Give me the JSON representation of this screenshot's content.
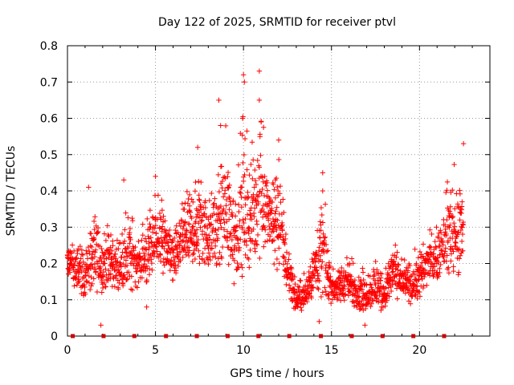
{
  "chart_data": {
    "type": "scatter",
    "title": "Day 122 of 2025, SRMTID for receiver ptvl",
    "xlabel": "GPS time / hours",
    "ylabel": "SRMTID / TECUs",
    "xlim": [
      0,
      24
    ],
    "ylim": [
      0,
      0.8
    ],
    "xticks": [
      0,
      5,
      10,
      15,
      20
    ],
    "xtick_labels": [
      "0",
      "5",
      "10",
      "15",
      "20"
    ],
    "yticks": [
      0,
      0.1,
      0.2,
      0.3,
      0.4,
      0.5,
      0.6,
      0.7,
      0.8
    ],
    "ytick_labels": [
      "0",
      "0.1",
      "0.2",
      "0.3",
      "0.4",
      "0.5",
      "0.6",
      "0.7",
      "0.8"
    ],
    "grid": true,
    "marker": "+",
    "series_color": "#ff0000",
    "baseline_marker_color": "#cc0000",
    "baseline_markers_x": [
      0.3,
      2.05,
      3.8,
      5.6,
      7.35,
      9.1,
      10.85,
      12.6,
      14.4,
      16.15,
      17.9,
      19.65,
      21.4
    ],
    "envelope": {
      "x": [
        0,
        0.5,
        1,
        1.5,
        2,
        2.5,
        3,
        3.5,
        4,
        4.5,
        5,
        5.5,
        6,
        6.5,
        7,
        7.5,
        8,
        8.5,
        9,
        9.5,
        10,
        10.5,
        11,
        11.5,
        12,
        12.5,
        13,
        13.5,
        14,
        14.5,
        15,
        15.5,
        16,
        16.5,
        17,
        17.5,
        18,
        18.5,
        19,
        19.5,
        20,
        20.5,
        21,
        21.5,
        22,
        22.5
      ],
      "low": [
        0.16,
        0.1,
        0.1,
        0.1,
        0.12,
        0.1,
        0.1,
        0.1,
        0.12,
        0.12,
        0.15,
        0.15,
        0.12,
        0.18,
        0.18,
        0.15,
        0.18,
        0.15,
        0.15,
        0.12,
        0.15,
        0.15,
        0.2,
        0.18,
        0.15,
        0.1,
        0.06,
        0.05,
        0.1,
        0.08,
        0.08,
        0.08,
        0.08,
        0.06,
        0.06,
        0.06,
        0.06,
        0.1,
        0.1,
        0.08,
        0.08,
        0.12,
        0.14,
        0.15,
        0.12,
        0.12
      ],
      "high": [
        0.27,
        0.3,
        0.25,
        0.4,
        0.3,
        0.35,
        0.3,
        0.42,
        0.3,
        0.35,
        0.44,
        0.43,
        0.32,
        0.38,
        0.45,
        0.52,
        0.42,
        0.48,
        0.64,
        0.45,
        0.7,
        0.58,
        0.72,
        0.5,
        0.55,
        0.3,
        0.15,
        0.2,
        0.3,
        0.45,
        0.2,
        0.22,
        0.25,
        0.2,
        0.2,
        0.25,
        0.2,
        0.3,
        0.22,
        0.22,
        0.28,
        0.32,
        0.32,
        0.45,
        0.5,
        0.52
      ]
    },
    "spikes": [
      {
        "x": 10.9,
        "y": 0.73
      },
      {
        "x": 10.0,
        "y": 0.72
      },
      {
        "x": 10.05,
        "y": 0.7
      },
      {
        "x": 8.6,
        "y": 0.65
      },
      {
        "x": 10.9,
        "y": 0.65
      },
      {
        "x": 9.95,
        "y": 0.6
      },
      {
        "x": 8.7,
        "y": 0.58
      },
      {
        "x": 11.0,
        "y": 0.59
      },
      {
        "x": 12.0,
        "y": 0.54
      },
      {
        "x": 22.5,
        "y": 0.53
      },
      {
        "x": 7.4,
        "y": 0.52
      },
      {
        "x": 14.5,
        "y": 0.45
      },
      {
        "x": 5.0,
        "y": 0.44
      },
      {
        "x": 3.2,
        "y": 0.43
      },
      {
        "x": 1.2,
        "y": 0.41
      },
      {
        "x": 14.5,
        "y": 0.4
      },
      {
        "x": 1.9,
        "y": 0.03
      },
      {
        "x": 16.9,
        "y": 0.03
      },
      {
        "x": 14.3,
        "y": 0.04
      },
      {
        "x": 4.5,
        "y": 0.08
      }
    ]
  }
}
